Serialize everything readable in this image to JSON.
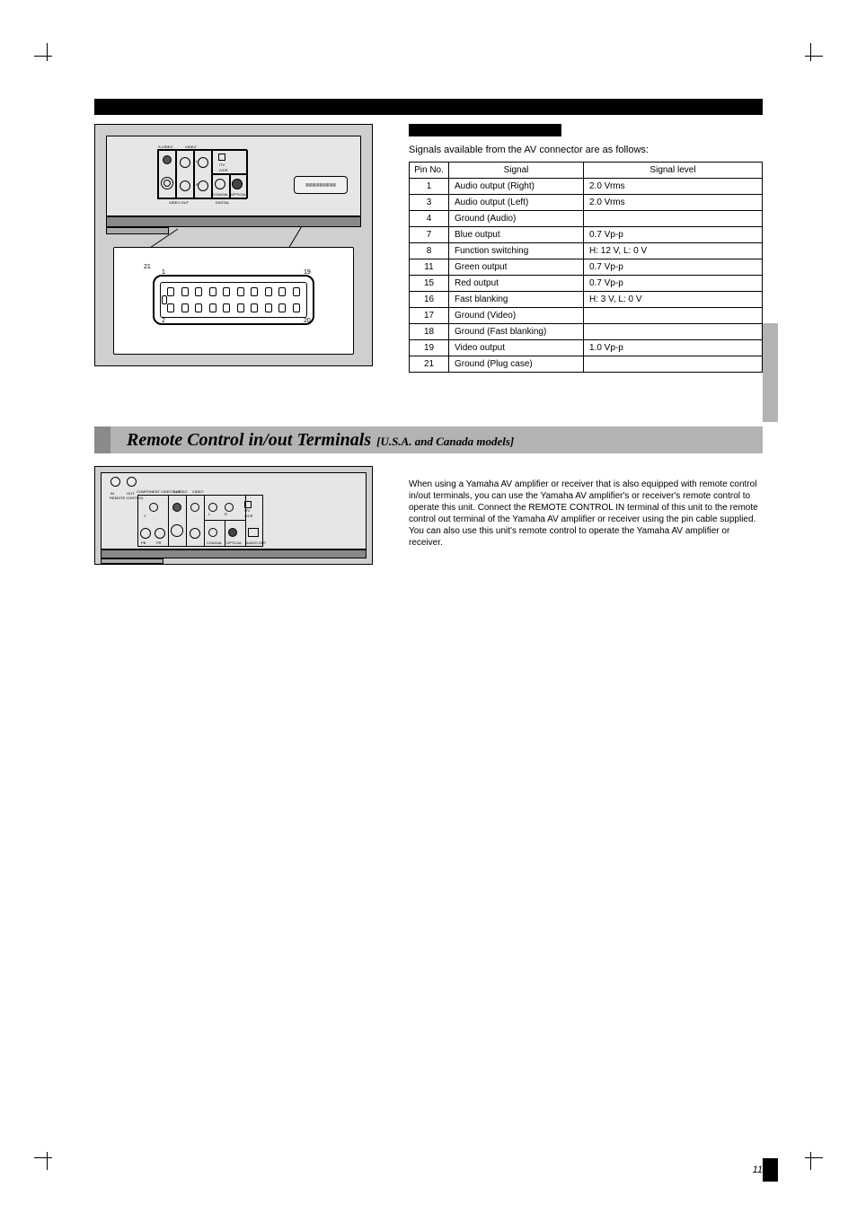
{
  "rear_panel_labels": {
    "svideo": "S-VIDEO",
    "video": "VIDEO",
    "tv": "/TV",
    "vcr": "/VCR",
    "video_out": "VIDEO OUT",
    "digital": "DIGITAL",
    "audio_l": "L",
    "audio_r": "R",
    "coaxial": "COAXIAL",
    "optical": "OPTICAL",
    "audio_out": "AUDIO OUT"
  },
  "scart": {
    "pin_top_left": "1",
    "pin_top_right": "19",
    "pin_bot_left": "2",
    "pin_bot_right": "20",
    "pin_tab": "21"
  },
  "signals": {
    "title": "Signals available from the AV connector are as follows:",
    "headers": {
      "pin": "Pin No.",
      "signal": "Signal",
      "level": "Signal level"
    },
    "rows": [
      {
        "pin": "1",
        "signal": "Audio output (Right)",
        "level": "2.0 Vrms"
      },
      {
        "pin": "3",
        "signal": "Audio output (Left)",
        "level": "2.0 Vrms"
      },
      {
        "pin": "4",
        "signal": "Ground (Audio)",
        "level": ""
      },
      {
        "pin": "7",
        "signal": "Blue output",
        "level": "0.7 Vp-p"
      },
      {
        "pin": "8",
        "signal": "Function switching",
        "level": "H: 12 V, L: 0 V"
      },
      {
        "pin": "11",
        "signal": "Green output",
        "level": "0.7 Vp-p"
      },
      {
        "pin": "15",
        "signal": "Red output",
        "level": "0.7 Vp-p"
      },
      {
        "pin": "16",
        "signal": "Fast blanking",
        "level": "H: 3 V, L: 0 V"
      },
      {
        "pin": "17",
        "signal": "Ground (Video)",
        "level": ""
      },
      {
        "pin": "18",
        "signal": "Ground (Fast blanking)",
        "level": ""
      },
      {
        "pin": "19",
        "signal": "Video output",
        "level": "1.0 Vp-p"
      },
      {
        "pin": "21",
        "signal": "Ground (Plug case)",
        "level": ""
      }
    ]
  },
  "remote_section": {
    "title": "Remote Control in/out Terminals",
    "subtitle": "[U.S.A. and Canada models]",
    "body": "When using a Yamaha AV amplifier or receiver that is also equipped with remote control in/out terminals, you can use the Yamaha AV amplifier's or receiver's remote control to operate this unit. Connect the REMOTE CONTROL IN terminal of this unit to the remote control out terminal of the Yamaha AV amplifier or receiver using the pin cable supplied. You can also use this unit's remote control to operate the Yamaha AV amplifier or receiver.",
    "labels": {
      "remote_control": "REMOTE CONTROL",
      "in": "IN",
      "out": "OUT",
      "component_video_out": "COMPONENT VIDEO OUT",
      "svideo": "S-VIDEO",
      "video": "VIDEO",
      "video_out": "VIDEO OUT",
      "tv": "/TV",
      "vcr": "/VCR",
      "y": "Y",
      "pb": "PB",
      "pr": "PR",
      "digital": "DIGITAL",
      "coaxial": "COAXIAL",
      "optical": "OPTICAL",
      "audio_out": "AUDIO OUT",
      "l": "L",
      "r": "R"
    }
  },
  "page_number": "11",
  "colors": {
    "page_bg": "#ffffff",
    "black": "#000000",
    "section_bar": "#b3b3b3",
    "sidebar_tab": "#b3b3b3",
    "diagram_bg": "#cfcfcf",
    "chassis_light": "#e6e6e6",
    "chassis_dark": "#888888"
  }
}
